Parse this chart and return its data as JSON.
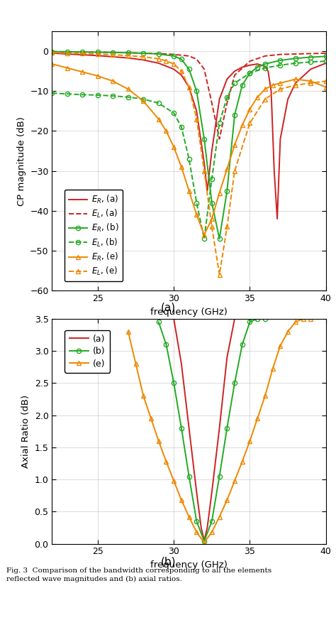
{
  "fig_width": 4.74,
  "fig_height": 8.8,
  "dpi": 100,
  "plot_a": {
    "xlabel": "frequency (GHz)",
    "ylabel": "CP magnitude (dB)",
    "xlim": [
      22,
      40
    ],
    "ylim": [
      -60,
      5
    ],
    "xticks": [
      25,
      30,
      35,
      40
    ],
    "yticks": [
      0,
      -10,
      -20,
      -30,
      -40,
      -50,
      -60
    ],
    "ER_a": {
      "color": "#cc2222",
      "linestyle": "-",
      "linewidth": 1.4,
      "marker": null,
      "x": [
        22,
        23,
        24,
        25,
        26,
        27,
        28,
        29,
        30,
        30.5,
        31,
        31.5,
        32,
        32.2,
        32.5,
        33,
        33.5,
        34,
        34.5,
        35,
        35.5,
        36,
        36.2,
        36.4,
        36.6,
        36.8,
        37,
        37.5,
        38,
        39,
        40
      ],
      "y": [
        -0.5,
        -0.7,
        -0.9,
        -1.1,
        -1.4,
        -1.7,
        -2.2,
        -3.0,
        -4.5,
        -6.0,
        -9.0,
        -15.0,
        -28.0,
        -35.0,
        -25.0,
        -12.0,
        -7.0,
        -5.0,
        -4.0,
        -3.5,
        -3.2,
        -3.8,
        -5.0,
        -10.0,
        -30.0,
        -42.0,
        -22.0,
        -12.0,
        -8.0,
        -4.5,
        -3.0
      ]
    },
    "EL_a": {
      "color": "#cc2222",
      "linestyle": "--",
      "linewidth": 1.4,
      "marker": null,
      "x": [
        22,
        23,
        24,
        25,
        26,
        27,
        28,
        29,
        30,
        31,
        31.5,
        32,
        32.5,
        33,
        33.5,
        34,
        35,
        36,
        37,
        38,
        39,
        40
      ],
      "y": [
        -0.1,
        -0.15,
        -0.2,
        -0.25,
        -0.3,
        -0.4,
        -0.5,
        -0.6,
        -0.8,
        -1.2,
        -2.0,
        -4.5,
        -13.0,
        -22.0,
        -13.0,
        -6.0,
        -2.5,
        -1.2,
        -0.8,
        -0.7,
        -0.6,
        -0.5
      ]
    },
    "ER_b": {
      "color": "#22aa22",
      "linestyle": "-",
      "linewidth": 1.4,
      "marker": "o",
      "markersize": 4.5,
      "x": [
        22,
        23,
        24,
        25,
        26,
        27,
        28,
        29,
        30,
        30.5,
        31,
        31.5,
        32,
        32.5,
        33,
        33.5,
        34,
        34.5,
        35,
        35.5,
        36,
        37,
        38,
        39,
        40
      ],
      "y": [
        -0.1,
        -0.15,
        -0.2,
        -0.25,
        -0.3,
        -0.4,
        -0.5,
        -0.7,
        -1.2,
        -2.0,
        -4.5,
        -10.0,
        -22.0,
        -38.0,
        -47.0,
        -35.0,
        -16.0,
        -8.5,
        -5.5,
        -4.0,
        -3.2,
        -2.3,
        -1.8,
        -1.5,
        -1.3
      ]
    },
    "EL_b": {
      "color": "#22aa22",
      "linestyle": "--",
      "linewidth": 1.4,
      "marker": "o",
      "markersize": 4.5,
      "x": [
        22,
        23,
        24,
        25,
        26,
        27,
        28,
        29,
        30,
        30.5,
        31,
        31.5,
        32,
        32.5,
        33,
        33.5,
        34,
        35,
        36,
        37,
        38,
        39,
        40
      ],
      "y": [
        -10.5,
        -10.7,
        -10.9,
        -11.0,
        -11.2,
        -11.5,
        -12.0,
        -13.0,
        -15.5,
        -19.0,
        -27.0,
        -38.0,
        -47.0,
        -32.0,
        -18.0,
        -11.5,
        -8.0,
        -5.5,
        -4.2,
        -3.5,
        -3.0,
        -2.7,
        -2.5
      ]
    },
    "ER_e": {
      "color": "#ee8800",
      "linestyle": "-",
      "linewidth": 1.4,
      "marker": "^",
      "markersize": 5,
      "x": [
        22,
        23,
        24,
        25,
        26,
        27,
        28,
        29,
        29.5,
        30,
        30.5,
        31,
        31.5,
        32,
        32.5,
        33,
        33.5,
        34,
        34.5,
        35,
        35.5,
        36,
        36.5,
        37,
        38,
        39,
        40
      ],
      "y": [
        -3.2,
        -4.2,
        -5.2,
        -6.2,
        -7.5,
        -9.5,
        -12.5,
        -17.0,
        -20.0,
        -24.0,
        -29.0,
        -35.0,
        -41.0,
        -46.0,
        -42.0,
        -35.5,
        -29.5,
        -23.5,
        -18.5,
        -14.5,
        -11.5,
        -9.5,
        -8.5,
        -8.0,
        -7.0,
        -7.5,
        -9.0
      ]
    },
    "EL_e": {
      "color": "#ee8800",
      "linestyle": "--",
      "linewidth": 1.4,
      "marker": "^",
      "markersize": 5,
      "x": [
        22,
        23,
        24,
        25,
        26,
        27,
        28,
        29,
        29.5,
        30,
        30.5,
        31,
        31.5,
        32,
        32.5,
        33,
        33.5,
        34,
        35,
        36,
        37,
        38,
        39,
        40
      ],
      "y": [
        -0.4,
        -0.5,
        -0.6,
        -0.7,
        -0.9,
        -1.1,
        -1.4,
        -1.9,
        -2.4,
        -3.2,
        -5.0,
        -9.0,
        -17.0,
        -30.0,
        -44.0,
        -56.0,
        -44.0,
        -30.0,
        -18.0,
        -12.0,
        -9.5,
        -8.5,
        -8.0,
        -7.5
      ]
    },
    "legend_entries": [
      {
        "label": "$E_R$, (a)",
        "color": "#cc2222",
        "linestyle": "-",
        "marker": null
      },
      {
        "label": "$E_L$, (a)",
        "color": "#cc2222",
        "linestyle": "--",
        "marker": null
      },
      {
        "label": "$E_R$, (b)",
        "color": "#22aa22",
        "linestyle": "-",
        "marker": "o"
      },
      {
        "label": "$E_L$, (b)",
        "color": "#22aa22",
        "linestyle": "--",
        "marker": "o"
      },
      {
        "label": "$E_R$, (e)",
        "color": "#ee8800",
        "linestyle": "-",
        "marker": "^"
      },
      {
        "label": "$E_L$, (e)",
        "color": "#ee8800",
        "linestyle": "--",
        "marker": "^"
      }
    ]
  },
  "plot_b": {
    "xlabel": "frequency (GHz)",
    "ylabel": "Axial Ratio (dB)",
    "xlim": [
      22,
      40
    ],
    "ylim": [
      0,
      3.5
    ],
    "xticks": [
      25,
      30,
      35,
      40
    ],
    "yticks": [
      0,
      0.5,
      1.0,
      1.5,
      2.0,
      2.5,
      3.0,
      3.5
    ],
    "AR_a": {
      "color": "#cc2222",
      "linestyle": "-",
      "linewidth": 1.4,
      "marker": null,
      "x": [
        30.0,
        30.5,
        31.0,
        31.5,
        31.8,
        32.0,
        32.2,
        32.5,
        33.0,
        33.5,
        34.0
      ],
      "y": [
        3.5,
        2.8,
        1.8,
        0.8,
        0.25,
        0.05,
        0.25,
        0.8,
        1.8,
        2.9,
        3.5
      ]
    },
    "AR_b": {
      "color": "#22aa22",
      "linestyle": "-",
      "linewidth": 1.4,
      "marker": "o",
      "markersize": 4.5,
      "x": [
        29.0,
        29.5,
        30.0,
        30.5,
        31.0,
        31.5,
        32.0,
        32.5,
        33.0,
        33.5,
        34.0,
        34.5,
        35.0,
        35.5,
        36.0
      ],
      "y": [
        3.45,
        3.1,
        2.5,
        1.8,
        1.05,
        0.35,
        0.04,
        0.35,
        1.05,
        1.8,
        2.5,
        3.1,
        3.45,
        3.5,
        3.5
      ]
    },
    "AR_e": {
      "color": "#ee8800",
      "linestyle": "-",
      "linewidth": 1.4,
      "marker": "^",
      "markersize": 5,
      "x": [
        27.0,
        27.5,
        28.0,
        28.5,
        29.0,
        29.5,
        30.0,
        30.5,
        31.0,
        31.5,
        32.0,
        32.5,
        33.0,
        33.5,
        34.0,
        34.5,
        35.0,
        35.5,
        36.0,
        36.5,
        37.0,
        37.5,
        38.0,
        38.5,
        39.0
      ],
      "y": [
        3.3,
        2.8,
        2.3,
        1.95,
        1.6,
        1.28,
        0.98,
        0.68,
        0.42,
        0.18,
        0.02,
        0.18,
        0.42,
        0.68,
        0.98,
        1.28,
        1.6,
        1.95,
        2.3,
        2.72,
        3.08,
        3.3,
        3.45,
        3.5,
        3.5
      ]
    },
    "legend_entries": [
      {
        "label": "(a)",
        "color": "#cc2222",
        "linestyle": "-",
        "marker": null
      },
      {
        "label": "(b)",
        "color": "#22aa22",
        "linestyle": "-",
        "marker": "o"
      },
      {
        "label": "(e)",
        "color": "#ee8800",
        "linestyle": "-",
        "marker": "^"
      }
    ]
  },
  "caption": "Fig. 3  Comparison of the bandwidth corresponding to all the elements\nreflected wave magnitudes and (b) axial ratios.",
  "background_color": "#ffffff"
}
